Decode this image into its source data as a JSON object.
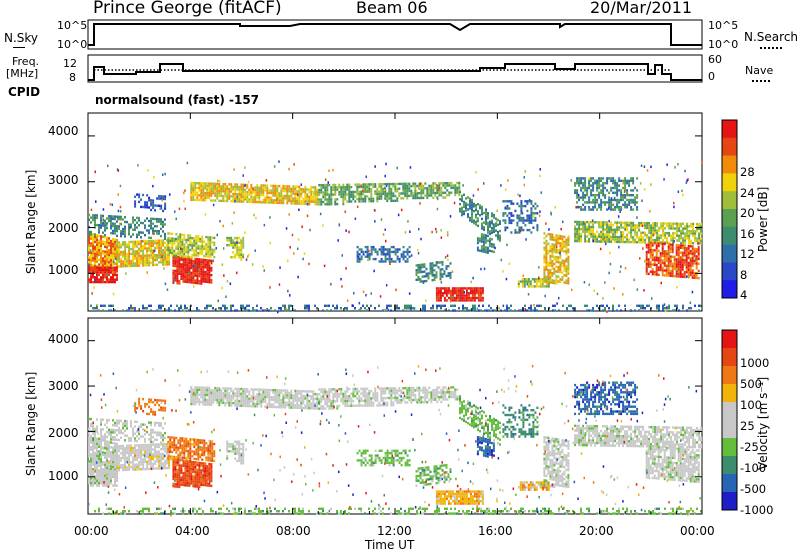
{
  "header": {
    "station": "Prince George (fitACF)",
    "beam": "Beam 06",
    "date": "20/Mar/2011"
  },
  "top_panels": {
    "nsky_label": "N.Sky",
    "nsky_ticks": [
      "10^5",
      "10^0"
    ],
    "nsearch_label": "N.Search",
    "nsearch_ticks": [
      "10^5",
      "10^0"
    ],
    "freq_label_1": "Freq.",
    "freq_label_2": "[MHz]",
    "freq_ticks": [
      "12",
      "8"
    ],
    "nave_label": "Nave",
    "nave_ticks": [
      "60",
      "0"
    ],
    "cpid_label": "CPID",
    "cpid_value": "normalsound (fast) -157"
  },
  "colors": {
    "power_scale": [
      "#1e1ee6",
      "#2848c8",
      "#2f6eaa",
      "#3c8c6e",
      "#5aa050",
      "#a0be3c",
      "#f0d20a",
      "#f08c0a",
      "#e64614",
      "#e61414"
    ],
    "velocity_scale": [
      "#1e1ec8",
      "#2864b4",
      "#3c8c6e",
      "#64be3c",
      "#c8c8c8",
      "#c8c8c8",
      "#f0b40a",
      "#f07814",
      "#e64614",
      "#e61414"
    ]
  },
  "chart_data": [
    {
      "type": "heatmap",
      "name": "power",
      "ylabel": "Slant Range [km]",
      "y_ticks": [
        "4000",
        "3000",
        "2000",
        "1000"
      ],
      "ylim": [
        180,
        4500
      ],
      "x_ticks": [
        "00:00",
        "04:00",
        "08:00",
        "12:00",
        "16:00",
        "20:00",
        "00:00"
      ],
      "xlim_hours": [
        0,
        24
      ],
      "colorbar_label": "Power [dB]",
      "colorbar_ticks": [
        "28",
        "24",
        "20",
        "16",
        "12",
        "8",
        "4"
      ],
      "colorbar_range": [
        0,
        30
      ]
    },
    {
      "type": "heatmap",
      "name": "velocity",
      "ylabel": "Slant Range [km]",
      "y_ticks": [
        "4000",
        "3000",
        "2000",
        "1000"
      ],
      "ylim": [
        180,
        4500
      ],
      "x_ticks": [
        "00:00",
        "04:00",
        "08:00",
        "12:00",
        "16:00",
        "20:00",
        "00:00"
      ],
      "xlim_hours": [
        0,
        24
      ],
      "xlabel": "Time UT",
      "colorbar_label": "Velocity [m s⁻¹]",
      "colorbar_ticks": [
        "1000",
        "500",
        "100",
        "25",
        "-25",
        "-100",
        "-500",
        "-1000"
      ]
    }
  ]
}
